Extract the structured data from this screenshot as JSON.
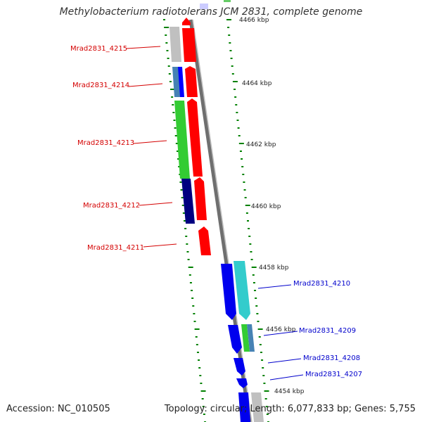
{
  "title": "Methylobacterium radiotolerans JCM 2831, complete genome",
  "footer": {
    "accession": "Accession: NC_010505",
    "summary": "Topology: circular; Length: 6,077,833 bp; Genes: 5,755"
  },
  "scale_labels": [
    "4466 kbp",
    "4464 kbp",
    "4462 kbp",
    "4460 kbp",
    "4458 kbp",
    "4456 kbp",
    "4454 kbp"
  ],
  "genes_left": [
    "Mrad2831_4215",
    "Mrad2831_4214",
    "Mrad2831_4213",
    "Mrad2831_4212",
    "Mrad2831_4211"
  ],
  "genes_right": [
    "Mrad2831_4210",
    "Mrad2831_4209",
    "Mrad2831_4208",
    "Mrad2831_4207"
  ],
  "colors": {
    "gene_label_left": "#d40000",
    "gene_label_right": "#0000cc",
    "forward_cds": "#ff0000",
    "reverse_cds": "#0000ff",
    "tick": "#008000",
    "backbone": "#808080"
  }
}
